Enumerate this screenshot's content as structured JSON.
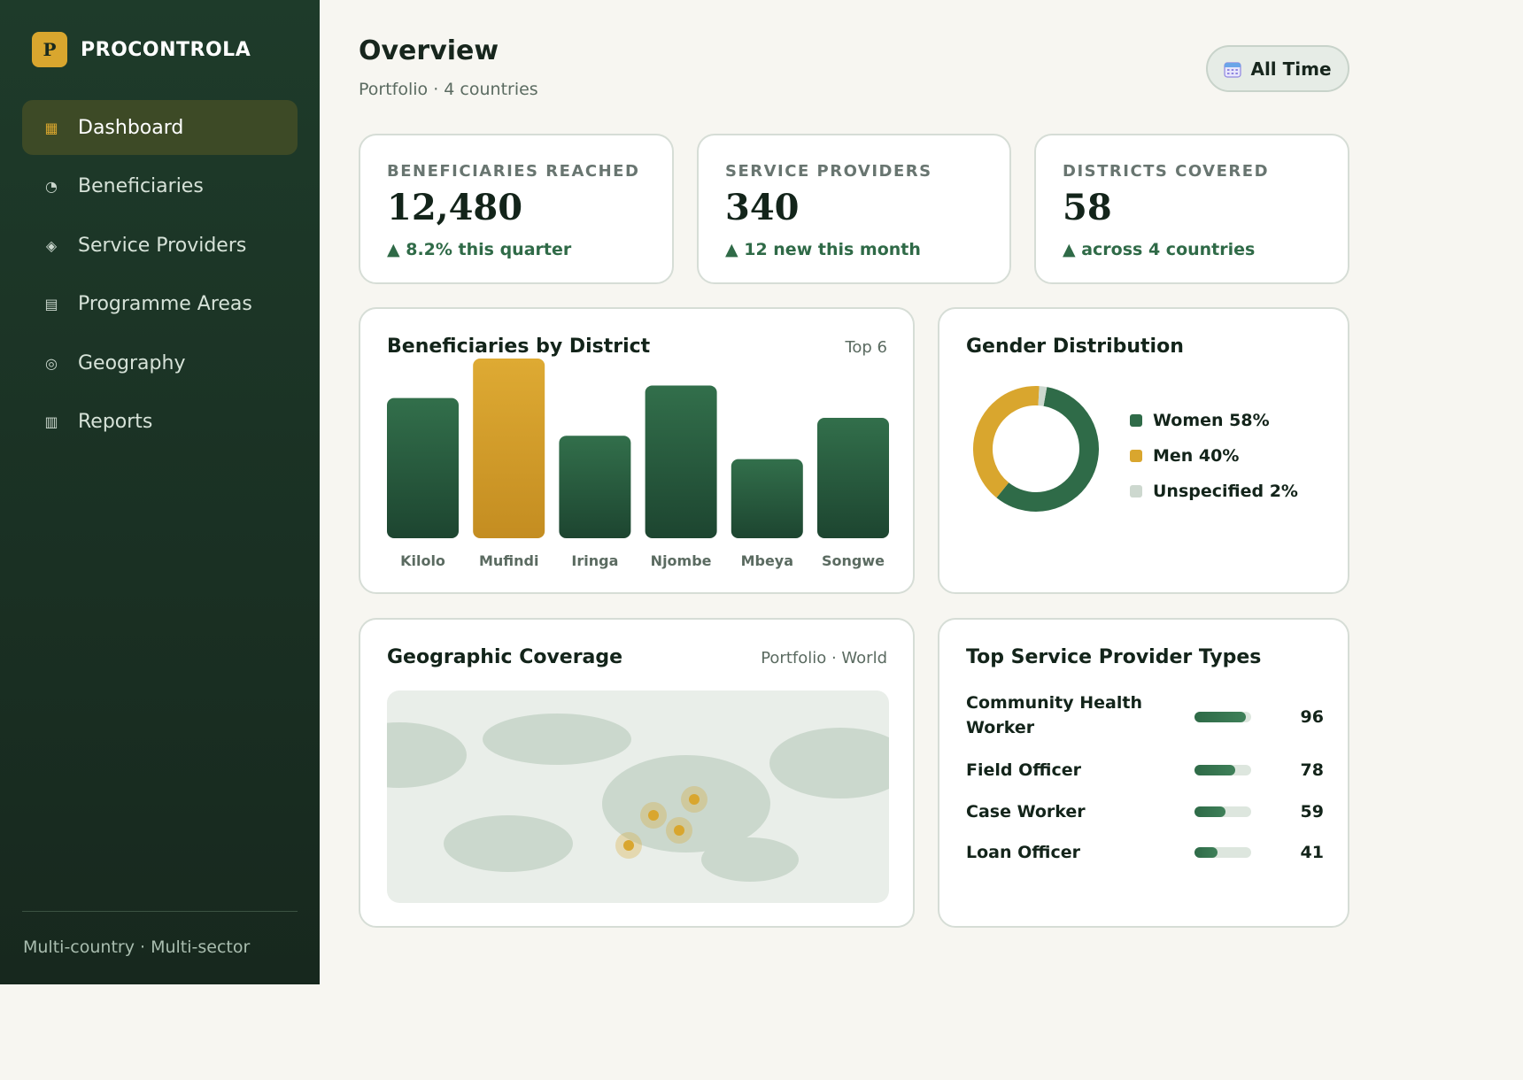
{
  "brand": {
    "logo_letter": "P",
    "name": "PROCONTROLA"
  },
  "sidebar": {
    "items": [
      {
        "label": "Dashboard",
        "icon": "grid-icon",
        "glyph": "▦",
        "active": true
      },
      {
        "label": "Beneficiaries",
        "icon": "pie-icon",
        "glyph": "◔",
        "active": false
      },
      {
        "label": "Service Providers",
        "icon": "diamond-icon",
        "glyph": "◈",
        "active": false
      },
      {
        "label": "Programme Areas",
        "icon": "list-icon",
        "glyph": "▤",
        "active": false
      },
      {
        "label": "Geography",
        "icon": "target-icon",
        "glyph": "◎",
        "active": false
      },
      {
        "label": "Reports",
        "icon": "bars-icon",
        "glyph": "▥",
        "active": false
      }
    ],
    "footer": "Multi-country · Multi-sector"
  },
  "header": {
    "title": "Overview",
    "subtitle": "Portfolio · 4 countries",
    "time_filter": "All Time"
  },
  "stats": [
    {
      "label": "BENEFICIARIES REACHED",
      "value": "12,480",
      "delta": "▲ 8.2% this quarter"
    },
    {
      "label": "SERVICE PROVIDERS",
      "value": "340",
      "delta": "▲ 12 new this month"
    },
    {
      "label": "DISTRICTS COVERED",
      "value": "58",
      "delta": "▲ across 4 countries"
    }
  ],
  "district_chart": {
    "title": "Beneficiaries by District",
    "tag": "Top 6"
  },
  "gender": {
    "title": "Gender Distribution",
    "legend": [
      {
        "label": "Women 58%",
        "color": "#2f6b48"
      },
      {
        "label": "Men 40%",
        "color": "#d9a62e"
      },
      {
        "label": "Unspecified 2%",
        "color": "#cdd8cf"
      }
    ]
  },
  "geo": {
    "title": "Geographic Coverage",
    "tag": "Portfolio · World"
  },
  "providers": {
    "title": "Top Service Provider Types",
    "rows": [
      {
        "name": "Community Health Worker",
        "count": "96",
        "fraction": 0.9
      },
      {
        "name": "Field Officer",
        "count": "78",
        "fraction": 0.72
      },
      {
        "name": "Case Worker",
        "count": "59",
        "fraction": 0.55
      },
      {
        "name": "Loan Officer",
        "count": "41",
        "fraction": 0.4
      }
    ]
  },
  "chart_data": [
    {
      "type": "bar",
      "title": "Beneficiaries by District",
      "categories": [
        "Kilolo",
        "Mufindi",
        "Iringa",
        "Njombe",
        "Mbeya",
        "Songwe"
      ],
      "values": [
        78,
        100,
        57,
        85,
        44,
        67
      ],
      "highlight_index": 1,
      "colors": {
        "default": "#2e6a47",
        "highlight": "#d9a62e"
      }
    },
    {
      "type": "pie",
      "title": "Gender Distribution",
      "categories": [
        "Women",
        "Men",
        "Unspecified"
      ],
      "values": [
        58,
        40,
        2
      ],
      "colors": [
        "#2f6b48",
        "#d9a62e",
        "#cdd8cf"
      ]
    }
  ]
}
